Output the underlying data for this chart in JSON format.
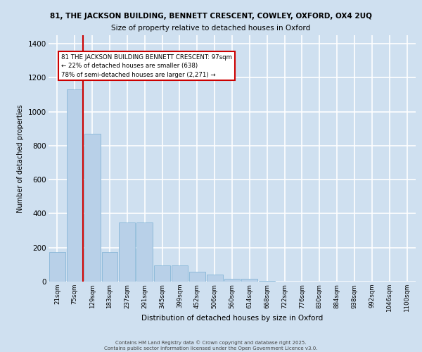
{
  "title_line1": "81, THE JACKSON BUILDING, BENNETT CRESCENT, COWLEY, OXFORD, OX4 2UQ",
  "title_line2": "Size of property relative to detached houses in Oxford",
  "xlabel": "Distribution of detached houses by size in Oxford",
  "ylabel": "Number of detached properties",
  "categories": [
    "21sqm",
    "75sqm",
    "129sqm",
    "183sqm",
    "237sqm",
    "291sqm",
    "345sqm",
    "399sqm",
    "452sqm",
    "506sqm",
    "560sqm",
    "614sqm",
    "668sqm",
    "722sqm",
    "776sqm",
    "830sqm",
    "884sqm",
    "938sqm",
    "992sqm",
    "1046sqm",
    "1100sqm"
  ],
  "values": [
    175,
    1130,
    870,
    175,
    350,
    350,
    95,
    95,
    60,
    40,
    18,
    15,
    5,
    0,
    0,
    0,
    0,
    0,
    0,
    0,
    0
  ],
  "bar_color": "#b8d0e8",
  "bar_edge_color": "#7aafd4",
  "vline_x": 1.47,
  "annotation_text": "81 THE JACKSON BUILDING BENNETT CRESCENT: 97sqm\n← 22% of detached houses are smaller (638)\n78% of semi-detached houses are larger (2,271) →",
  "annotation_box_facecolor": "#ffffff",
  "annotation_box_edgecolor": "#cc0000",
  "annotation_text_color": "#000000",
  "vline_color": "#cc0000",
  "background_color": "#cfe0f0",
  "grid_color": "#ffffff",
  "ylim": [
    0,
    1450
  ],
  "yticks": [
    0,
    200,
    400,
    600,
    800,
    1000,
    1200,
    1400
  ],
  "footer_line1": "Contains HM Land Registry data © Crown copyright and database right 2025.",
  "footer_line2": "Contains public sector information licensed under the Open Government Licence v3.0."
}
